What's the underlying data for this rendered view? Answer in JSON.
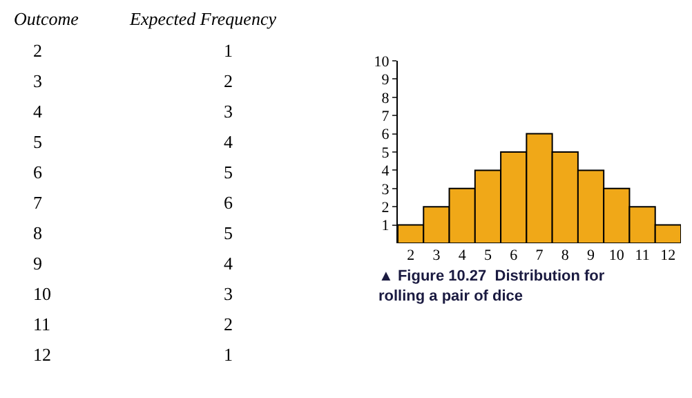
{
  "chart_data": {
    "type": "bar",
    "title": "▲ Figure 10.27  Distribution for rolling a pair of dice",
    "categories": [
      "2",
      "3",
      "4",
      "5",
      "6",
      "7",
      "8",
      "9",
      "10",
      "11",
      "12"
    ],
    "values": [
      1,
      2,
      3,
      4,
      5,
      6,
      5,
      4,
      3,
      2,
      1
    ],
    "color": "#f0a818",
    "ylim": [
      0,
      10
    ],
    "yticks": [
      1,
      2,
      3,
      4,
      5,
      6,
      7,
      8,
      9,
      10
    ],
    "annotations": [
      "Outcome",
      "Expected Frequency",
      "2",
      "1",
      "3",
      "2",
      "4",
      "3",
      "5",
      "4",
      "6",
      "5",
      "7",
      "6",
      "8",
      "5",
      "9",
      "4",
      "10",
      "3",
      "11",
      "2",
      "12",
      "1"
    ],
    "grid": false
  }
}
